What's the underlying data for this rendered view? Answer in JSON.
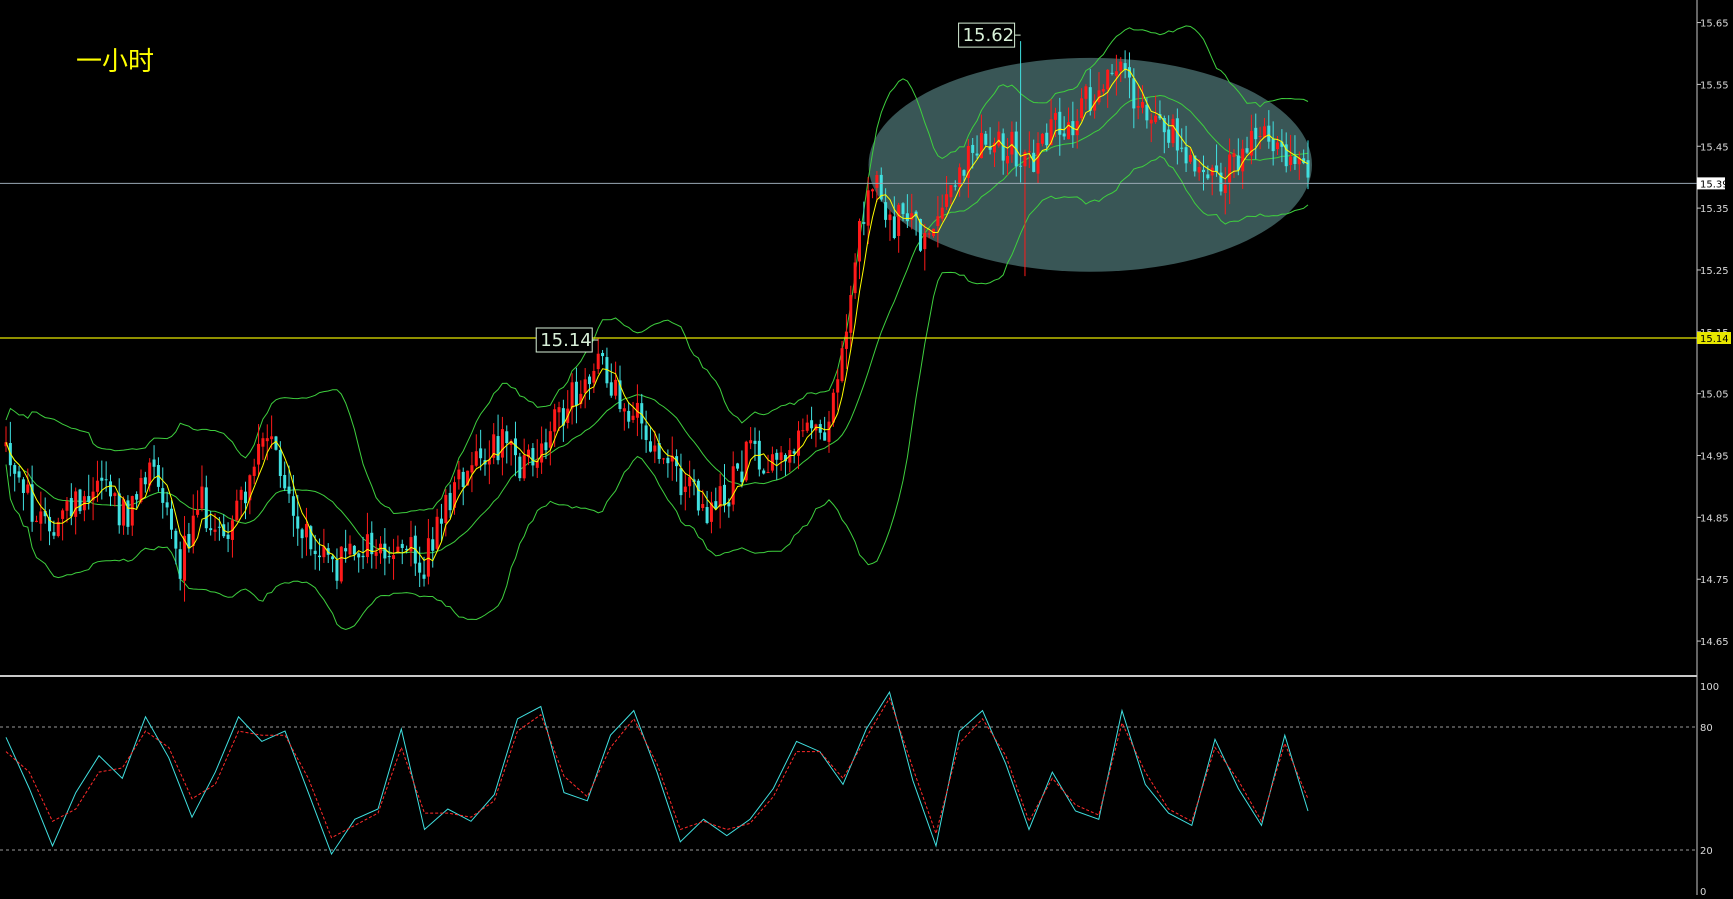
{
  "timeframe_label": "一小时",
  "colors": {
    "background": "#000000",
    "bull_candle": "#ff1a1a",
    "bear_candle": "#40e0e0",
    "ma_line": "#ffff00",
    "bollinger": "#3ecf3e",
    "support_line": "#e6e600",
    "last_price_line": "#9aa8b4",
    "stoch_k": "#40e0e0",
    "stoch_d": "#ff2a2a",
    "ellipse_fill": "#5f8f8f"
  },
  "chart_data": [
    {
      "type": "candlestick",
      "panel": "price",
      "y_range": [
        14.6,
        15.68
      ],
      "price_ticks": [
        "15.65",
        "15.55",
        "15.45",
        "15.35",
        "15.25",
        "15.15",
        "15.05",
        "14.95",
        "14.85",
        "14.75",
        "14.65"
      ],
      "current_price_label": "15.39",
      "support_label": "15.14",
      "annotations": [
        {
          "text": "15.62",
          "price": 15.62
        },
        {
          "text": "15.14",
          "price": 15.14
        }
      ],
      "overlays": [
        "moving average",
        "bollinger bands"
      ],
      "highlight": "ellipse around consolidation range 15.26–15.58",
      "price_path": [
        [
          0,
          14.97
        ],
        [
          8,
          14.83
        ],
        [
          15,
          14.87
        ],
        [
          22,
          14.92
        ],
        [
          28,
          14.84
        ],
        [
          34,
          14.95
        ],
        [
          40,
          14.78
        ],
        [
          45,
          14.87
        ],
        [
          50,
          14.82
        ],
        [
          55,
          14.9
        ],
        [
          60,
          14.98
        ],
        [
          65,
          14.87
        ],
        [
          70,
          14.8
        ],
        [
          76,
          14.77
        ],
        [
          82,
          14.81
        ],
        [
          88,
          14.79
        ],
        [
          92,
          14.8
        ],
        [
          96,
          14.77
        ],
        [
          102,
          14.89
        ],
        [
          108,
          14.96
        ],
        [
          114,
          14.97
        ],
        [
          118,
          14.92
        ],
        [
          124,
          14.97
        ],
        [
          130,
          15.05
        ],
        [
          136,
          15.1
        ],
        [
          140,
          15.06
        ],
        [
          145,
          15.01
        ],
        [
          150,
          14.93
        ],
        [
          156,
          14.91
        ],
        [
          160,
          14.85
        ],
        [
          165,
          14.88
        ],
        [
          170,
          14.95
        ],
        [
          176,
          14.95
        ],
        [
          182,
          14.97
        ],
        [
          188,
          15.0
        ],
        [
          192,
          15.1
        ],
        [
          196,
          15.3
        ],
        [
          199,
          15.4
        ],
        [
          203,
          15.31
        ],
        [
          207,
          15.35
        ],
        [
          211,
          15.28
        ],
        [
          215,
          15.37
        ],
        [
          220,
          15.42
        ],
        [
          225,
          15.48
        ],
        [
          230,
          15.45
        ],
        [
          236,
          15.42
        ],
        [
          240,
          15.5
        ],
        [
          245,
          15.47
        ],
        [
          250,
          15.55
        ],
        [
          255,
          15.58
        ],
        [
          260,
          15.53
        ],
        [
          264,
          15.51
        ],
        [
          268,
          15.47
        ],
        [
          272,
          15.43
        ],
        [
          276,
          15.42
        ],
        [
          280,
          15.4
        ],
        [
          284,
          15.43
        ],
        [
          288,
          15.47
        ],
        [
          292,
          15.45
        ],
        [
          296,
          15.42
        ],
        [
          299,
          15.39
        ]
      ]
    },
    {
      "type": "line",
      "panel": "stochastic",
      "y_range": [
        0,
        100
      ],
      "y_ticks": [
        "100",
        "80",
        "20",
        "0"
      ],
      "levels": [
        80,
        20
      ],
      "series": [
        {
          "name": "%K",
          "values": [
            75,
            50,
            22,
            48,
            66,
            55,
            85,
            65,
            36,
            58,
            85,
            73,
            78,
            48,
            18,
            35,
            40,
            79,
            30,
            40,
            34,
            47,
            84,
            90,
            48,
            44,
            76,
            88,
            58,
            24,
            35,
            27,
            35,
            50,
            73,
            68,
            52,
            79,
            97,
            54,
            22,
            78,
            88,
            62,
            30,
            58,
            39,
            35,
            88,
            52,
            38,
            32,
            74,
            50,
            32,
            76,
            39
          ]
        },
        {
          "name": "%D",
          "values": [
            68,
            58,
            34,
            40,
            58,
            60,
            78,
            70,
            45,
            52,
            78,
            76,
            76,
            55,
            26,
            32,
            38,
            70,
            38,
            38,
            36,
            44,
            78,
            86,
            56,
            46,
            70,
            84,
            62,
            30,
            34,
            30,
            33,
            46,
            68,
            68,
            55,
            75,
            94,
            60,
            28,
            72,
            84,
            66,
            34,
            55,
            42,
            37,
            82,
            58,
            40,
            34,
            70,
            54,
            34,
            72,
            45
          ]
        }
      ]
    }
  ]
}
